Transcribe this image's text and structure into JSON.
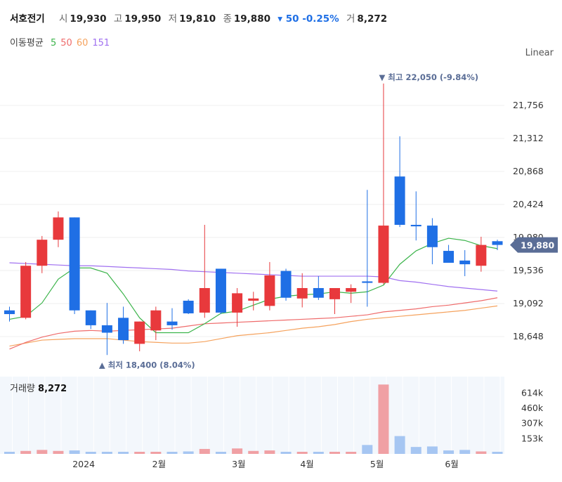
{
  "header": {
    "name": "서호전기",
    "open_label": "시",
    "open": "19,930",
    "high_label": "고",
    "high": "19,950",
    "low_label": "저",
    "low": "19,810",
    "close_label": "종",
    "close": "19,880",
    "change": "▾ 50 -0.25%",
    "volume_label": "거",
    "volume": "8,272"
  },
  "ma_legend": {
    "label": "이동평균",
    "items": [
      {
        "name": "5",
        "color": "#3cb44b"
      },
      {
        "name": "50",
        "color": "#ef6b6b"
      },
      {
        "name": "60",
        "color": "#f5a25d"
      },
      {
        "name": "151",
        "color": "#a070f0"
      }
    ]
  },
  "scale_label": "Linear",
  "colors": {
    "up": "#e8393c",
    "down": "#1f6fe5",
    "up_vol": "#f0a0a4",
    "down_vol": "#a6c6f2"
  },
  "chart_data": {
    "type": "candlestick",
    "y_ticks": [
      "21,756",
      "21,312",
      "20,868",
      "20,424",
      "19,980",
      "19,536",
      "19,092",
      "18,648"
    ],
    "y_tick_values": [
      21756,
      21312,
      20868,
      20424,
      19980,
      19536,
      19092,
      18648
    ],
    "x_labels": [
      "2024",
      "2월",
      "3월",
      "4월",
      "5월",
      "6월"
    ],
    "last_price_label": "19,880",
    "last_price": 19880,
    "high_annotation": "▼ 최고 22,050 (-9.84%)",
    "low_annotation": "▲ 최저 18,400 (8.04%)",
    "candles": [
      {
        "o": 19000,
        "h": 19050,
        "l": 18850,
        "c": 18950
      },
      {
        "o": 18900,
        "h": 19650,
        "l": 18880,
        "c": 19600
      },
      {
        "o": 19600,
        "h": 20000,
        "l": 19500,
        "c": 19950
      },
      {
        "o": 19950,
        "h": 20330,
        "l": 19850,
        "c": 20250
      },
      {
        "o": 20250,
        "h": 20250,
        "l": 18950,
        "c": 19000
      },
      {
        "o": 19000,
        "h": 19000,
        "l": 18750,
        "c": 18800
      },
      {
        "o": 18800,
        "h": 19100,
        "l": 18400,
        "c": 18700
      },
      {
        "o": 18900,
        "h": 19050,
        "l": 18550,
        "c": 18600
      },
      {
        "o": 18550,
        "h": 18850,
        "l": 18450,
        "c": 18850
      },
      {
        "o": 18730,
        "h": 19050,
        "l": 18600,
        "c": 19000
      },
      {
        "o": 18850,
        "h": 19030,
        "l": 18740,
        "c": 18800
      },
      {
        "o": 19130,
        "h": 19150,
        "l": 18950,
        "c": 18960
      },
      {
        "o": 18970,
        "h": 20150,
        "l": 18900,
        "c": 19300
      },
      {
        "o": 19560,
        "h": 19560,
        "l": 18950,
        "c": 18970
      },
      {
        "o": 18970,
        "h": 19300,
        "l": 18780,
        "c": 19230
      },
      {
        "o": 19130,
        "h": 19250,
        "l": 19000,
        "c": 19160
      },
      {
        "o": 19060,
        "h": 19650,
        "l": 19000,
        "c": 19470
      },
      {
        "o": 19530,
        "h": 19560,
        "l": 19130,
        "c": 19170
      },
      {
        "o": 19160,
        "h": 19500,
        "l": 19040,
        "c": 19300
      },
      {
        "o": 19300,
        "h": 19460,
        "l": 19140,
        "c": 19170
      },
      {
        "o": 19150,
        "h": 19300,
        "l": 18950,
        "c": 19300
      },
      {
        "o": 19250,
        "h": 19350,
        "l": 19100,
        "c": 19300
      },
      {
        "o": 19390,
        "h": 20620,
        "l": 19050,
        "c": 19370
      },
      {
        "o": 19370,
        "h": 22050,
        "l": 19350,
        "c": 20140
      },
      {
        "o": 20800,
        "h": 21340,
        "l": 20120,
        "c": 20150
      },
      {
        "o": 20150,
        "h": 20600,
        "l": 19940,
        "c": 20130
      },
      {
        "o": 20140,
        "h": 20240,
        "l": 19620,
        "c": 19850
      },
      {
        "o": 19800,
        "h": 19880,
        "l": 19650,
        "c": 19640
      },
      {
        "o": 19670,
        "h": 19810,
        "l": 19460,
        "c": 19620
      },
      {
        "o": 19600,
        "h": 19990,
        "l": 19520,
        "c": 19880
      },
      {
        "o": 19930,
        "h": 19950,
        "l": 19810,
        "c": 19880
      }
    ],
    "ma5": [
      18880,
      18920,
      19100,
      19420,
      19570,
      19570,
      19500,
      19220,
      18900,
      18700,
      18700,
      18700,
      18820,
      18960,
      18990,
      19070,
      19150,
      19190,
      19210,
      19220,
      19250,
      19230,
      19250,
      19340,
      19620,
      19800,
      19900,
      19970,
      19940,
      19870,
      19830
    ],
    "ma50": [
      18480,
      18570,
      18640,
      18690,
      18720,
      18730,
      18720,
      18730,
      18740,
      18750,
      18760,
      18790,
      18820,
      18830,
      18840,
      18850,
      18860,
      18870,
      18880,
      18890,
      18900,
      18920,
      18940,
      18980,
      19000,
      19020,
      19050,
      19070,
      19100,
      19130,
      19170
    ],
    "ma60": [
      18520,
      18560,
      18600,
      18610,
      18620,
      18620,
      18620,
      18600,
      18580,
      18570,
      18560,
      18560,
      18580,
      18620,
      18660,
      18680,
      18700,
      18730,
      18760,
      18780,
      18810,
      18850,
      18880,
      18900,
      18920,
      18940,
      18960,
      18980,
      19000,
      19030,
      19060
    ],
    "ma151": [
      19640,
      19630,
      19620,
      19610,
      19600,
      19600,
      19590,
      19580,
      19570,
      19560,
      19550,
      19530,
      19520,
      19510,
      19500,
      19490,
      19480,
      19470,
      19460,
      19460,
      19460,
      19460,
      19460,
      19450,
      19400,
      19380,
      19350,
      19320,
      19300,
      19280,
      19260
    ],
    "volume_label": "거래량",
    "volume_value": "8,272",
    "volume_ticks": [
      "614k",
      "460k",
      "307k",
      "153k"
    ],
    "volume_tick_values": [
      614000,
      460000,
      307000,
      153000
    ],
    "volumes": [
      0,
      30000,
      40000,
      30000,
      35000,
      12000,
      8000,
      10000,
      12000,
      20000,
      12000,
      25000,
      50000,
      18000,
      55000,
      30000,
      35000,
      18000,
      20000,
      18000,
      20000,
      20000,
      90000,
      700000,
      180000,
      70000,
      75000,
      35000,
      40000,
      25000,
      8272
    ]
  }
}
